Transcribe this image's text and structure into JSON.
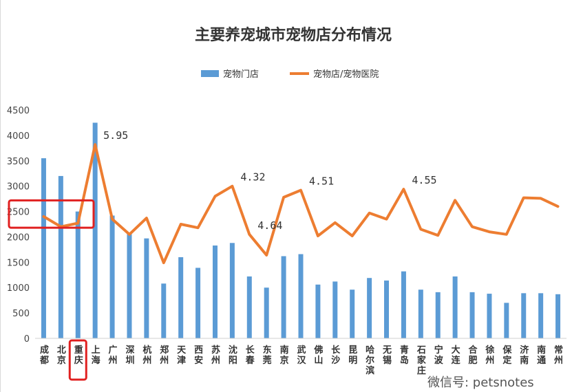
{
  "chart_data": {
    "type": "bar",
    "title": "主要养宠城市宠物店分布情况",
    "categories": [
      "成都",
      "北京",
      "重庆",
      "上海",
      "广州",
      "深圳",
      "杭州",
      "郑州",
      "天津",
      "西安",
      "苏州",
      "沈阳",
      "长春",
      "东莞",
      "南京",
      "武汉",
      "佛山",
      "长沙",
      "昆明",
      "哈尔滨",
      "无锡",
      "青岛",
      "石家庄",
      "宁波",
      "大连",
      "合肥",
      "徐州",
      "保定",
      "济南",
      "南通",
      "常州"
    ],
    "ylim": [
      0,
      4500
    ],
    "yticks": [
      0,
      500,
      1000,
      1500,
      2000,
      2500,
      3000,
      3500,
      4000,
      4500
    ],
    "grid": false,
    "legend_position": "top-center",
    "series": [
      {
        "name": "宠物门店",
        "type": "bar",
        "color": "#5b9bd5",
        "values": [
          3550,
          3200,
          2500,
          4250,
          2420,
          2060,
          1970,
          1080,
          1600,
          1390,
          1830,
          1880,
          1220,
          1000,
          1620,
          1660,
          1060,
          1120,
          960,
          1190,
          1140,
          1320,
          960,
          910,
          1220,
          910,
          880,
          700,
          890,
          890,
          870
        ]
      },
      {
        "name": "宠物店/宠物医院",
        "type": "line",
        "color": "#ed7d31",
        "values": [
          2400,
          2200,
          2270,
          3820,
          2350,
          2050,
          2370,
          1490,
          2250,
          2180,
          2800,
          3000,
          2050,
          1640,
          2780,
          2920,
          2020,
          2280,
          2020,
          2470,
          2350,
          2940,
          2150,
          2030,
          2720,
          2200,
          2100,
          2050,
          2770,
          2760,
          2600
        ]
      }
    ],
    "annotations": [
      {
        "text": "5.95",
        "category": "上海"
      },
      {
        "text": "4.32",
        "category": "沈阳"
      },
      {
        "text": "4.64",
        "category": "长春"
      },
      {
        "text": "4.51",
        "category": "武汉"
      },
      {
        "text": "4.55",
        "category": "青岛"
      }
    ],
    "highlight_color": "#e02020",
    "highlight_category": "重庆"
  },
  "watermark": "微信号: petsnotes"
}
